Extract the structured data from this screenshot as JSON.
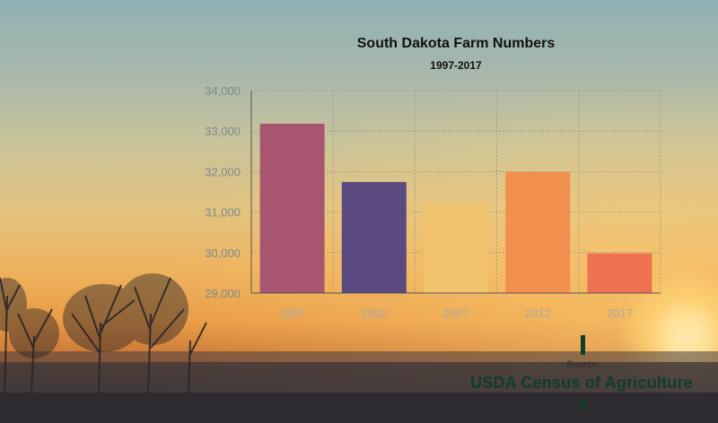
{
  "chart_data": {
    "type": "bar",
    "title": "South Dakota Farm Numbers",
    "subtitle": "1997-2017",
    "categories": [
      "1997",
      "2002",
      "2007",
      "2012",
      "2017"
    ],
    "values": [
      33180,
      31740,
      31170,
      31990,
      29980
    ],
    "colors": [
      "#a8566f",
      "#5a4a80",
      "#f3c470",
      "#f1904e",
      "#ef7350"
    ],
    "ylim": [
      29000,
      34000
    ],
    "yticks": [
      "29,000",
      "30,000",
      "31,000",
      "32,000",
      "33,000",
      "34,000"
    ],
    "ytick_values": [
      29000,
      30000,
      31000,
      32000,
      33000,
      34000
    ],
    "grid": true,
    "legend": "none"
  },
  "source": {
    "label": "Source:",
    "name": "USDA Census of Agriculture"
  }
}
